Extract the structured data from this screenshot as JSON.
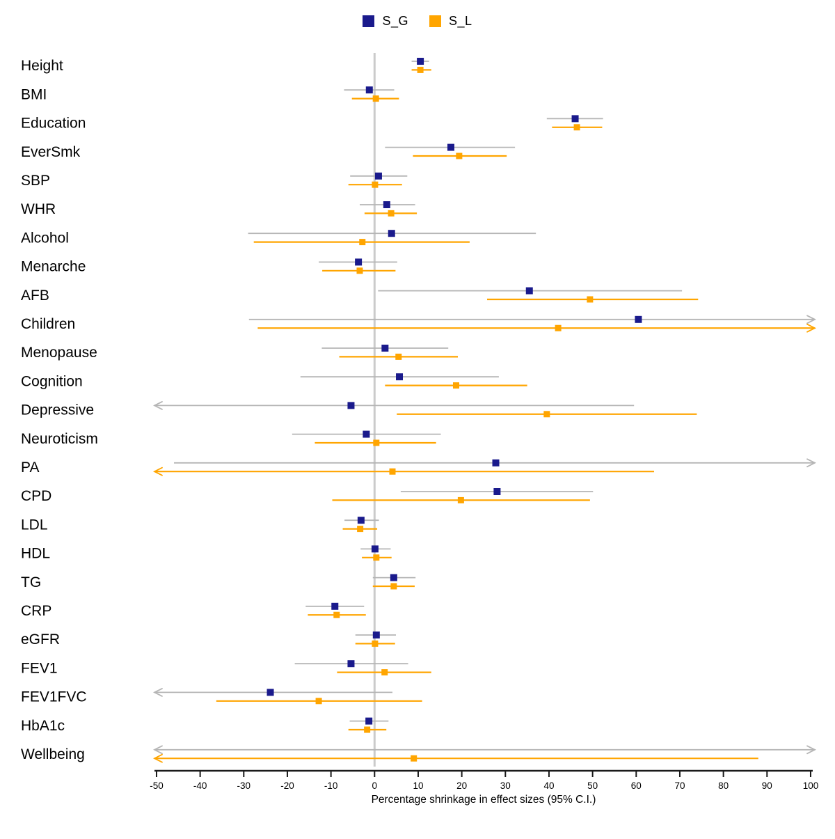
{
  "legend": {
    "items": [
      {
        "label": "S_G",
        "color": "#1a1a8c"
      },
      {
        "label": "S_L",
        "color": "#ffa500"
      }
    ]
  },
  "chart_data": {
    "type": "forest",
    "title": "",
    "xlabel": "Percentage shrinkage in effect sizes (95% C.I.)",
    "xlim": [
      -50,
      100
    ],
    "ticks": [
      -50,
      -40,
      -30,
      -20,
      -10,
      0,
      10,
      20,
      30,
      40,
      50,
      60,
      70,
      80,
      90,
      100
    ],
    "grid": false,
    "legend_position": "top-center",
    "reference_line_x": 0,
    "series": [
      {
        "name": "S_G",
        "point_color": "#1a1a8c",
        "ci_color": "#b5b5b5"
      },
      {
        "name": "S_L",
        "point_color": "#ffa500",
        "ci_color": "#ffa500"
      }
    ],
    "rows": [
      {
        "label": "Height",
        "S_G": {
          "est": 10.5,
          "lo": 8.5,
          "hi": 12.5
        },
        "S_L": {
          "est": 10.5,
          "lo": 8.5,
          "hi": 13
        }
      },
      {
        "label": "BMI",
        "S_G": {
          "est": -1.2,
          "lo": -7,
          "hi": 4.5
        },
        "S_L": {
          "est": 0.3,
          "lo": -5.2,
          "hi": 5.6
        }
      },
      {
        "label": "Education",
        "S_G": {
          "est": 46,
          "lo": 39.5,
          "hi": 52.4
        },
        "S_L": {
          "est": 46.4,
          "lo": 40.7,
          "hi": 52.2
        }
      },
      {
        "label": "EverSmk",
        "S_G": {
          "est": 17.5,
          "lo": 2.4,
          "hi": 32.2
        },
        "S_L": {
          "est": 19.4,
          "lo": 8.8,
          "hi": 30.3
        }
      },
      {
        "label": "SBP",
        "S_G": {
          "est": 0.9,
          "lo": -5.6,
          "hi": 7.5
        },
        "S_L": {
          "est": 0.1,
          "lo": -6,
          "hi": 6.3
        }
      },
      {
        "label": "WHR",
        "S_G": {
          "est": 2.8,
          "lo": -3.4,
          "hi": 9.3
        },
        "S_L": {
          "est": 3.8,
          "lo": -2.3,
          "hi": 9.7
        }
      },
      {
        "label": "Alcohol",
        "S_G": {
          "est": 3.9,
          "lo": -29,
          "hi": 37
        },
        "S_L": {
          "est": -2.8,
          "lo": -27.7,
          "hi": 21.8
        }
      },
      {
        "label": "Menarche",
        "S_G": {
          "est": -3.7,
          "lo": -12.8,
          "hi": 5.2
        },
        "S_L": {
          "est": -3.4,
          "lo": -12,
          "hi": 4.8
        }
      },
      {
        "label": "AFB",
        "S_G": {
          "est": 35.5,
          "lo": 0.8,
          "hi": 70.5
        },
        "S_L": {
          "est": 49.4,
          "lo": 25.8,
          "hi": 74.2
        }
      },
      {
        "label": "Children",
        "S_G": {
          "est": 60.5,
          "lo": -28.8,
          "hi": 100,
          "hi_arrow": true
        },
        "S_L": {
          "est": 42.1,
          "lo": -26.8,
          "hi": 100,
          "hi_arrow": true
        }
      },
      {
        "label": "Menopause",
        "S_G": {
          "est": 2.4,
          "lo": -12.1,
          "hi": 16.9
        },
        "S_L": {
          "est": 5.5,
          "lo": -8.1,
          "hi": 19.1
        }
      },
      {
        "label": "Cognition",
        "S_G": {
          "est": 5.7,
          "lo": -17,
          "hi": 28.5
        },
        "S_L": {
          "est": 18.7,
          "lo": 2.4,
          "hi": 35
        }
      },
      {
        "label": "Depressive",
        "S_G": {
          "est": -5.4,
          "lo": -50,
          "lo_arrow": true,
          "hi": 59.5
        },
        "S_L": {
          "est": 39.5,
          "lo": 5.1,
          "hi": 73.9
        }
      },
      {
        "label": "Neuroticism",
        "S_G": {
          "est": -1.9,
          "lo": -18.9,
          "hi": 15.2
        },
        "S_L": {
          "est": 0.4,
          "lo": -13.7,
          "hi": 14.1
        }
      },
      {
        "label": "PA",
        "S_G": {
          "est": 27.8,
          "lo": -46,
          "hi": 100,
          "hi_arrow": true
        },
        "S_L": {
          "est": 4.1,
          "lo": -50,
          "lo_arrow": true,
          "hi": 64.1
        }
      },
      {
        "label": "CPD",
        "S_G": {
          "est": 28.1,
          "lo": 6,
          "hi": 50.1
        },
        "S_L": {
          "est": 19.8,
          "lo": -9.7,
          "hi": 49.4
        }
      },
      {
        "label": "LDL",
        "S_G": {
          "est": -3.1,
          "lo": -6.9,
          "hi": 1
        },
        "S_L": {
          "est": -3.3,
          "lo": -7.3,
          "hi": 0.6
        }
      },
      {
        "label": "HDL",
        "S_G": {
          "est": 0.1,
          "lo": -3.2,
          "hi": 3.7
        },
        "S_L": {
          "est": 0.4,
          "lo": -2.9,
          "hi": 3.9
        }
      },
      {
        "label": "TG",
        "S_G": {
          "est": 4.4,
          "lo": -0.4,
          "hi": 9.4
        },
        "S_L": {
          "est": 4.4,
          "lo": -0.4,
          "hi": 9.2
        }
      },
      {
        "label": "CRP",
        "S_G": {
          "est": -9.1,
          "lo": -15.8,
          "hi": -2.4
        },
        "S_L": {
          "est": -8.7,
          "lo": -15.3,
          "hi": -2
        }
      },
      {
        "label": "eGFR",
        "S_G": {
          "est": 0.4,
          "lo": -4.4,
          "hi": 4.9
        },
        "S_L": {
          "est": 0.1,
          "lo": -4.4,
          "hi": 4.7
        }
      },
      {
        "label": "FEV1",
        "S_G": {
          "est": -5.4,
          "lo": -18.3,
          "hi": 7.7
        },
        "S_L": {
          "est": 2.3,
          "lo": -8.6,
          "hi": 13
        }
      },
      {
        "label": "FEV1FVC",
        "S_G": {
          "est": -23.9,
          "lo": -50,
          "lo_arrow": true,
          "hi": 4.1
        },
        "S_L": {
          "est": -12.8,
          "lo": -36.3,
          "hi": 10.9
        }
      },
      {
        "label": "HbA1c",
        "S_G": {
          "est": -1.3,
          "lo": -5.7,
          "hi": 3.2
        },
        "S_L": {
          "est": -1.7,
          "lo": -6,
          "hi": 2.7
        }
      },
      {
        "label": "Wellbeing",
        "S_G": {
          "est": null,
          "lo": -50,
          "lo_arrow": true,
          "hi": 100,
          "hi_arrow": true
        },
        "S_L": {
          "est": 9,
          "lo": -50,
          "lo_arrow": true,
          "hi": 88
        }
      }
    ]
  }
}
